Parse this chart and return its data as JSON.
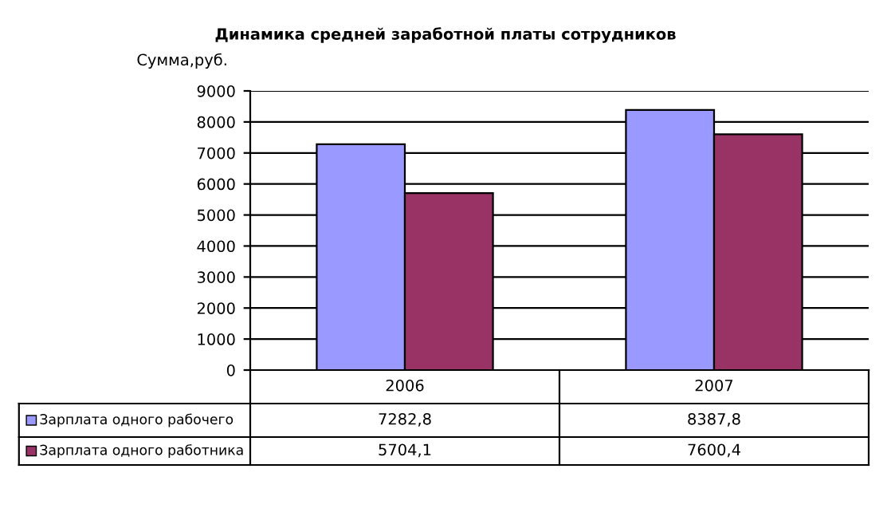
{
  "chart_data": {
    "type": "bar",
    "title": "Динамика средней заработной платы сотрудников",
    "ylabel": "Сумма,руб.",
    "categories": [
      "2006",
      "2007"
    ],
    "series": [
      {
        "name": "Зарплата одного рабочего",
        "color": "#9999ff",
        "values": [
          7282.8,
          8387.8
        ],
        "value_labels": [
          "7282,8",
          "8387,8"
        ]
      },
      {
        "name": "Зарплата одного работника",
        "color": "#993366",
        "values": [
          5704.1,
          7600.4
        ],
        "value_labels": [
          "5704,1",
          "7600,4"
        ]
      }
    ],
    "ylim": [
      0,
      9000
    ],
    "yticks": [
      0,
      1000,
      2000,
      3000,
      4000,
      5000,
      6000,
      7000,
      8000,
      9000
    ],
    "grid": "y",
    "legend": "bottom"
  }
}
